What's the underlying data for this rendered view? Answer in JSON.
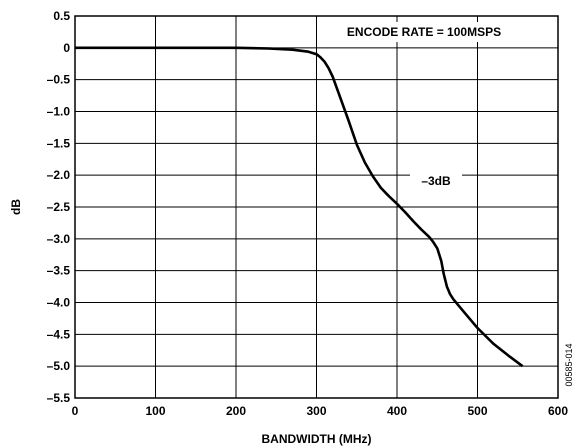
{
  "chart_data": {
    "type": "line",
    "title": "",
    "xlabel": "BANDWIDTH (MHz)",
    "ylabel": "dB",
    "xlim": [
      0,
      600
    ],
    "ylim": [
      -5.5,
      0.5
    ],
    "grid": true,
    "x_ticks": [
      0,
      100,
      200,
      300,
      400,
      500,
      600
    ],
    "x_tick_labels": [
      "0",
      "100",
      "200",
      "300",
      "400",
      "500",
      "600"
    ],
    "y_ticks": [
      0.5,
      0,
      -0.5,
      -1.0,
      -1.5,
      -2.0,
      -2.5,
      -3.0,
      -3.5,
      -4.0,
      -4.5,
      -5.0,
      -5.5
    ],
    "y_tick_labels": [
      "0.5",
      "0",
      "–0.5",
      "–1.0",
      "–1.5",
      "–2.0",
      "–2.5",
      "–3.0",
      "–3.5",
      "–4.0",
      "–4.5",
      "–5.0",
      "–5.5"
    ],
    "series": [
      {
        "x": [
          0,
          100,
          200,
          240,
          270,
          290,
          300,
          305,
          310,
          315,
          320,
          330,
          340,
          350,
          360,
          370,
          380,
          390,
          400,
          410,
          420,
          430,
          440,
          445,
          450,
          455,
          458,
          462,
          466,
          470,
          480,
          490,
          500,
          520,
          540,
          556
        ],
        "y": [
          0,
          0,
          0,
          -0.01,
          -0.03,
          -0.06,
          -0.1,
          -0.15,
          -0.22,
          -0.32,
          -0.45,
          -0.8,
          -1.15,
          -1.52,
          -1.8,
          -2.02,
          -2.2,
          -2.33,
          -2.45,
          -2.58,
          -2.72,
          -2.85,
          -2.97,
          -3.05,
          -3.15,
          -3.35,
          -3.55,
          -3.75,
          -3.87,
          -3.95,
          -4.1,
          -4.25,
          -4.4,
          -4.65,
          -4.85,
          -5.0
        ]
      }
    ],
    "annotations": [
      {
        "text": "ENCODE RATE = 100MSPS"
      },
      {
        "text": "–3dB"
      }
    ],
    "figure_id": "00585-014"
  }
}
